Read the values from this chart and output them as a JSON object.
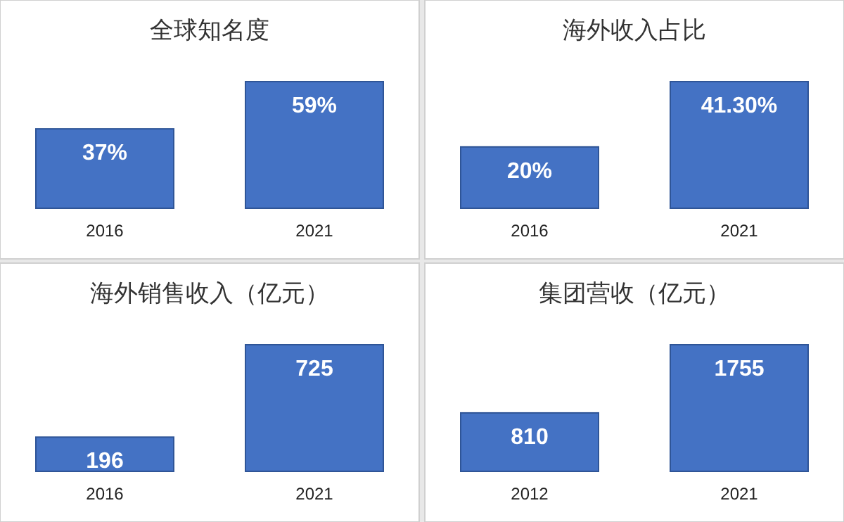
{
  "chart_data": [
    {
      "type": "bar",
      "title": "全球知名度",
      "categories": [
        "2016",
        "2021"
      ],
      "values": [
        37,
        59
      ],
      "value_labels": [
        "37%",
        "59%"
      ],
      "color": "#4472c4"
    },
    {
      "type": "bar",
      "title": "海外收入占比",
      "categories": [
        "2016",
        "2021"
      ],
      "values": [
        20,
        41.3
      ],
      "value_labels": [
        "20%",
        "41.30%"
      ],
      "color": "#4472c4"
    },
    {
      "type": "bar",
      "title": "海外销售收入（亿元）",
      "categories": [
        "2016",
        "2021"
      ],
      "values": [
        196,
        725
      ],
      "value_labels": [
        "196",
        "725"
      ],
      "color": "#4472c4"
    },
    {
      "type": "bar",
      "title": "集团营收（亿元）",
      "categories": [
        "2012",
        "2021"
      ],
      "values": [
        810,
        1755
      ],
      "value_labels": [
        "810",
        "1755"
      ],
      "color": "#4472c4"
    }
  ]
}
